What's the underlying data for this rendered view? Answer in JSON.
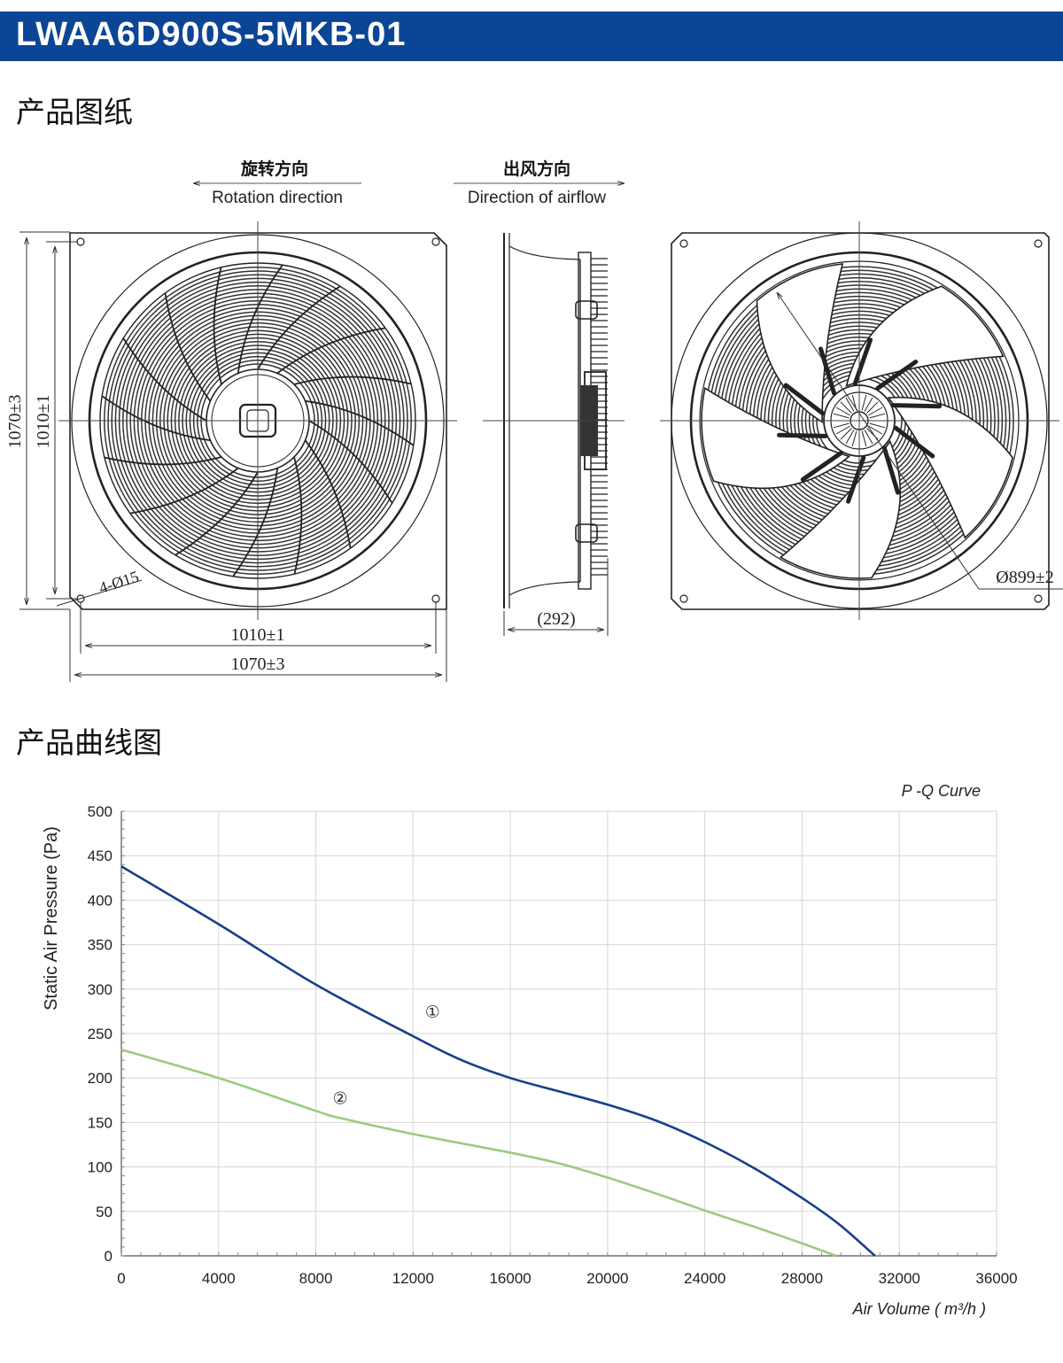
{
  "header": {
    "title": "LWAA6D900S-5MKB-01"
  },
  "sections": {
    "drawing": "产品图纸",
    "curve": "产品曲线图"
  },
  "drawing": {
    "rotation_cn": "旋转方向",
    "rotation_en": "Rotation direction",
    "airflow_cn": "出风方向",
    "airflow_en": "Direction of airflow",
    "dims": {
      "outer_v": "1070±3",
      "inner_v": "1010±1",
      "inner_h": "1010±1",
      "outer_h": "1070±3",
      "holes": "4-Ø15",
      "depth": "(292)",
      "diameter": "Ø899±2"
    }
  },
  "chart_data": {
    "type": "line",
    "title": "P -Q Curve",
    "xlabel": "Air Volume ( m³/h )",
    "ylabel": "Static Air Pressure  (Pa)",
    "xlim": [
      0,
      36000
    ],
    "ylim": [
      0,
      500
    ],
    "xticks": [
      0,
      4000,
      8000,
      12000,
      16000,
      20000,
      24000,
      28000,
      32000,
      36000
    ],
    "yticks": [
      0,
      50,
      100,
      150,
      200,
      250,
      300,
      350,
      400,
      450,
      500
    ],
    "grid": true,
    "series": [
      {
        "name": "①",
        "color": "#163f8c",
        "x": [
          0,
          4000,
          8000,
          12000,
          14000,
          16000,
          18000,
          20000,
          22000,
          24000,
          26000,
          28000,
          29500,
          31000
        ],
        "y": [
          438,
          373,
          305,
          247,
          220,
          200,
          185,
          170,
          152,
          128,
          99,
          65,
          36,
          0
        ]
      },
      {
        "name": "②",
        "color": "#9acb82",
        "x": [
          0,
          4000,
          8000,
          9000,
          12000,
          16000,
          18000,
          20000,
          22000,
          24000,
          26000,
          28000,
          29400
        ],
        "y": [
          232,
          200,
          163,
          155,
          137,
          116,
          104,
          88,
          70,
          51,
          33,
          14,
          0
        ]
      }
    ],
    "annotations": [
      {
        "text": "①",
        "x": 12800,
        "y": 268
      },
      {
        "text": "②",
        "x": 9000,
        "y": 171
      }
    ]
  }
}
